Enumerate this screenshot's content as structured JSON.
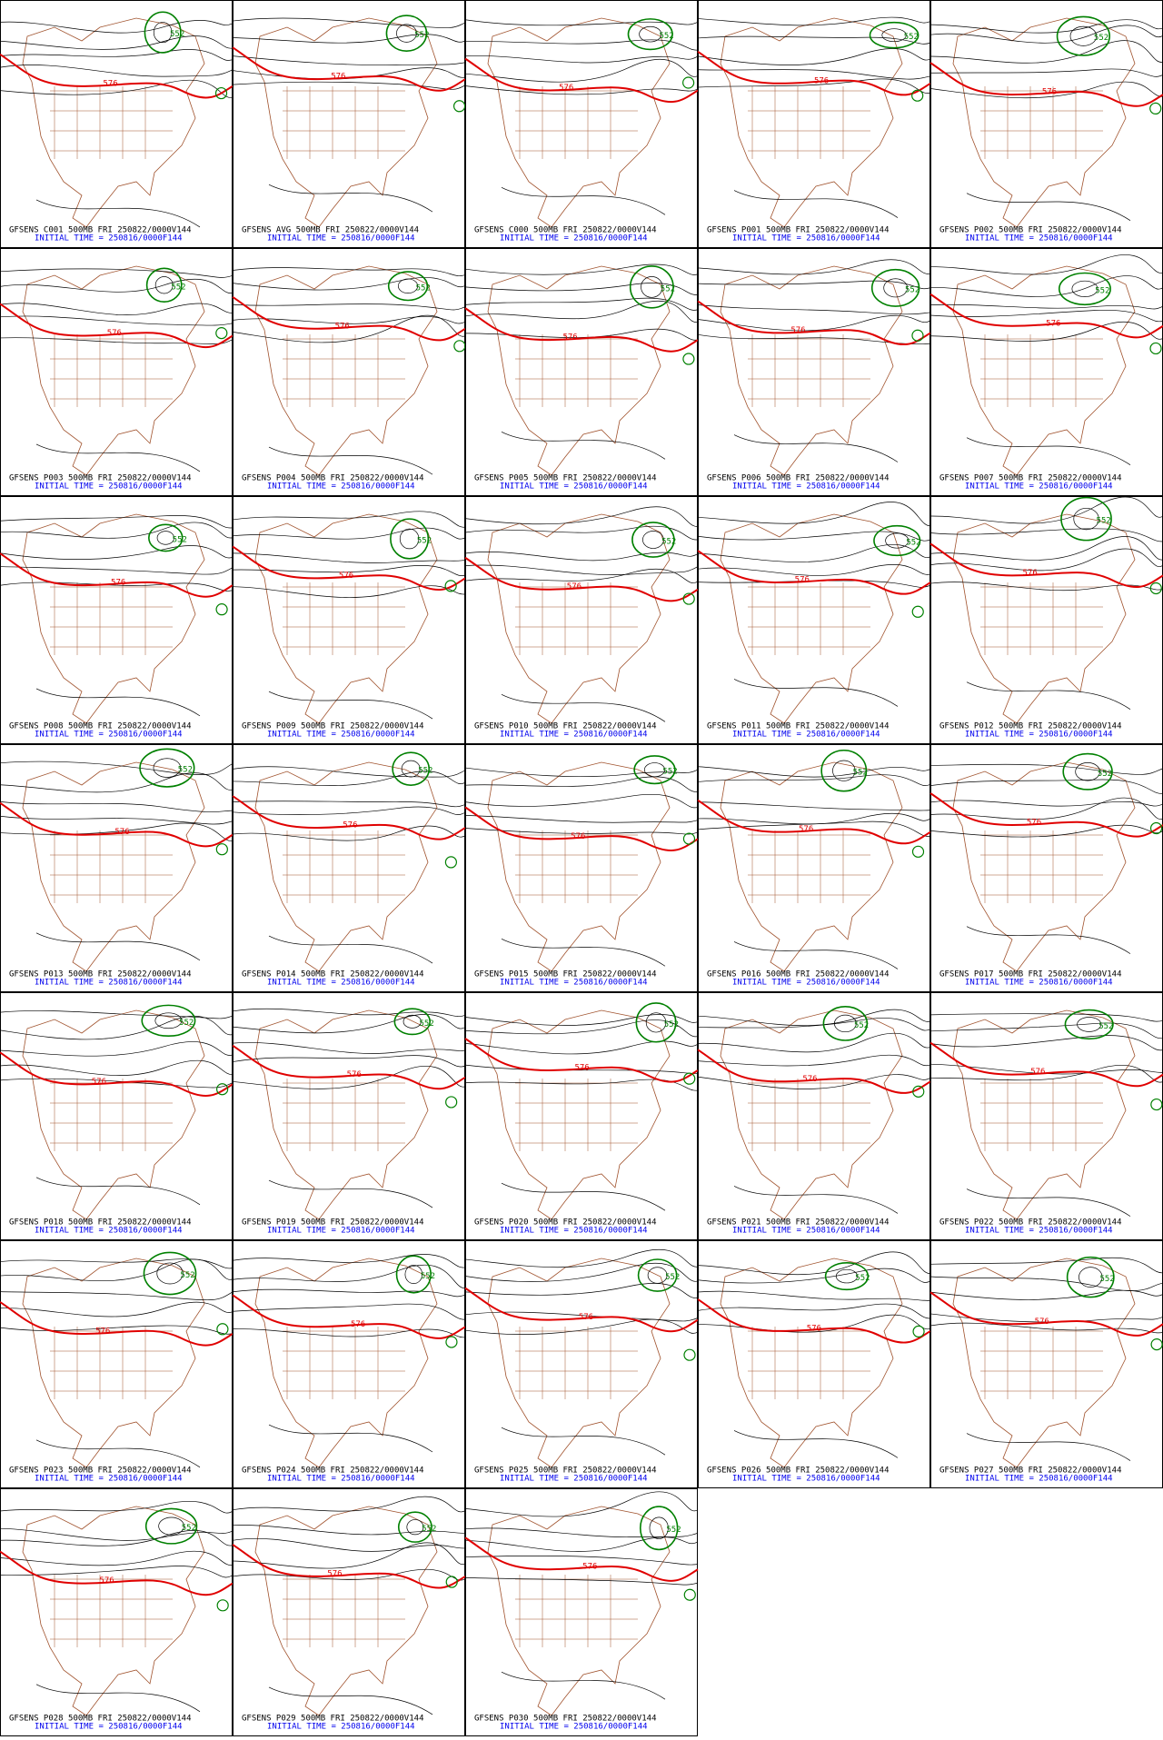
{
  "panels": [
    {
      "title": "GFSENS C001 500MB FRI 250822/0000V144",
      "initial_time": "INITIAL TIME = 250816/0000F144",
      "contour_labels": [
        "576",
        "552"
      ]
    },
    {
      "title": "GFSENS AVG 500MB FRI 250822/0000V144",
      "initial_time": "INITIAL TIME = 250816/0000F144",
      "contour_labels": [
        "576",
        "552"
      ]
    },
    {
      "title": "GFSENS C000 500MB FRI 250822/0000V144",
      "initial_time": "INITIAL TIME = 250816/0000F144",
      "contour_labels": [
        "576",
        "552"
      ]
    },
    {
      "title": "GFSENS P001 500MB FRI 250822/0000V144",
      "initial_time": "INITIAL TIME = 250816/0000F144",
      "contour_labels": [
        "576",
        "552"
      ]
    },
    {
      "title": "GFSENS P002 500MB FRI 250822/0000V144",
      "initial_time": "INITIAL TIME = 250816/0000F144",
      "contour_labels": [
        "576",
        "552"
      ]
    },
    {
      "title": "GFSENS P003 500MB FRI 250822/0000V144",
      "initial_time": "INITIAL TIME = 250816/0000F144",
      "contour_labels": [
        "576",
        "552"
      ]
    },
    {
      "title": "GFSENS P004 500MB FRI 250822/0000V144",
      "initial_time": "INITIAL TIME = 250816/0000F144",
      "contour_labels": [
        "576",
        "552"
      ]
    },
    {
      "title": "GFSENS P005 500MB FRI 250822/0000V144",
      "initial_time": "INITIAL TIME = 250816/0000F144",
      "contour_labels": [
        "576",
        "552"
      ]
    },
    {
      "title": "GFSENS P006 500MB FRI 250822/0000V144",
      "initial_time": "INITIAL TIME = 250816/0000F144",
      "contour_labels": [
        "576",
        "552"
      ]
    },
    {
      "title": "GFSENS P007 500MB FRI 250822/0000V144",
      "initial_time": "INITIAL TIME = 250816/0000F144",
      "contour_labels": [
        "576",
        "552"
      ]
    },
    {
      "title": "GFSENS P008 500MB FRI 250822/0000V144",
      "initial_time": "INITIAL TIME = 250816/0000F144",
      "contour_labels": [
        "576",
        "552"
      ]
    },
    {
      "title": "GFSENS P009 500MB FRI 250822/0000V144",
      "initial_time": "INITIAL TIME = 250816/0000F144",
      "contour_labels": [
        "576",
        "552"
      ]
    },
    {
      "title": "GFSENS P010 500MB FRI 250822/0000V144",
      "initial_time": "INITIAL TIME = 250816/0000F144",
      "contour_labels": [
        "576",
        "552"
      ]
    },
    {
      "title": "GFSENS P011 500MB FRI 250822/0000V144",
      "initial_time": "INITIAL TIME = 250816/0000F144",
      "contour_labels": [
        "576",
        "552"
      ]
    },
    {
      "title": "GFSENS P012 500MB FRI 250822/0000V144",
      "initial_time": "INITIAL TIME = 250816/0000F144",
      "contour_labels": [
        "576",
        "552"
      ]
    },
    {
      "title": "GFSENS P013 500MB FRI 250822/0000V144",
      "initial_time": "INITIAL TIME = 250816/0000F144",
      "contour_labels": [
        "576",
        "552"
      ]
    },
    {
      "title": "GFSENS P014 500MB FRI 250822/0000V144",
      "initial_time": "INITIAL TIME = 250816/0000F144",
      "contour_labels": [
        "576",
        "552"
      ]
    },
    {
      "title": "GFSENS P015 500MB FRI 250822/0000V144",
      "initial_time": "INITIAL TIME = 250816/0000F144",
      "contour_labels": [
        "576",
        "552"
      ]
    },
    {
      "title": "GFSENS P016 500MB FRI 250822/0000V144",
      "initial_time": "INITIAL TIME = 250816/0000F144",
      "contour_labels": [
        "576",
        "552"
      ]
    },
    {
      "title": "GFSENS P017 500MB FRI 250822/0000V144",
      "initial_time": "INITIAL TIME = 250816/0000F144",
      "contour_labels": [
        "576",
        "552"
      ]
    },
    {
      "title": "GFSENS P018 500MB FRI 250822/0000V144",
      "initial_time": "INITIAL TIME = 250816/0000F144",
      "contour_labels": [
        "576",
        "552"
      ]
    },
    {
      "title": "GFSENS P019 500MB FRI 250822/0000V144",
      "initial_time": "INITIAL TIME = 250816/0000F144",
      "contour_labels": [
        "576",
        "552"
      ]
    },
    {
      "title": "GFSENS P020 500MB FRI 250822/0000V144",
      "initial_time": "INITIAL TIME = 250816/0000F144",
      "contour_labels": [
        "576",
        "552"
      ]
    },
    {
      "title": "GFSENS P021 500MB FRI 250822/0000V144",
      "initial_time": "INITIAL TIME = 250816/0000F144",
      "contour_labels": [
        "576",
        "552"
      ]
    },
    {
      "title": "GFSENS P022 500MB FRI 250822/0000V144",
      "initial_time": "INITIAL TIME = 250816/0000F144",
      "contour_labels": [
        "576",
        "552"
      ]
    },
    {
      "title": "GFSENS P023 500MB FRI 250822/0000V144",
      "initial_time": "INITIAL TIME = 250816/0000F144",
      "contour_labels": [
        "576",
        "552"
      ]
    },
    {
      "title": "GFSENS P024 500MB FRI 250822/0000V144",
      "initial_time": "INITIAL TIME = 250816/0000F144",
      "contour_labels": [
        "576",
        "552"
      ]
    },
    {
      "title": "GFSENS P025 500MB FRI 250822/0000V144",
      "initial_time": "INITIAL TIME = 250816/0000F144",
      "contour_labels": [
        "576",
        "552"
      ]
    },
    {
      "title": "GFSENS P026 500MB FRI 250822/0000V144",
      "initial_time": "INITIAL TIME = 250816/0000F144",
      "contour_labels": [
        "576",
        "552"
      ]
    },
    {
      "title": "GFSENS P027 500MB FRI 250822/0000V144",
      "initial_time": "INITIAL TIME = 250816/0000F144",
      "contour_labels": [
        "576",
        "552"
      ]
    },
    {
      "title": "GFSENS P028 500MB FRI 250822/0000V144",
      "initial_time": "INITIAL TIME = 250816/0000F144",
      "contour_labels": [
        "576",
        "552"
      ]
    },
    {
      "title": "GFSENS P029 500MB FRI 250822/0000V144",
      "initial_time": "INITIAL TIME = 250816/0000F144",
      "contour_labels": [
        "576",
        "552"
      ]
    },
    {
      "title": "GFSENS P030 500MB FRI 250822/0000V144",
      "initial_time": "INITIAL TIME = 250816/0000F144",
      "contour_labels": [
        "576",
        "552"
      ]
    }
  ]
}
